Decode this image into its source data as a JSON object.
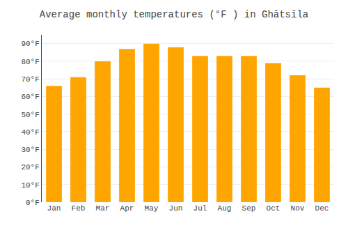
{
  "chart_data": {
    "type": "bar",
    "title": "Average monthly temperatures (°F ) in Ghātsīla",
    "categories": [
      "Jan",
      "Feb",
      "Mar",
      "Apr",
      "May",
      "Jun",
      "Jul",
      "Aug",
      "Sep",
      "Oct",
      "Nov",
      "Dec"
    ],
    "values": [
      66,
      71,
      80,
      87,
      90,
      88,
      83,
      83,
      83,
      79,
      72,
      65
    ],
    "color": "#FFA500",
    "ylim": [
      0,
      95
    ],
    "yticks": [
      {
        "value": 0,
        "label": "0°F"
      },
      {
        "value": 10,
        "label": "10°F"
      },
      {
        "value": 20,
        "label": "20°F"
      },
      {
        "value": 30,
        "label": "30°F"
      },
      {
        "value": 40,
        "label": "40°F"
      },
      {
        "value": 50,
        "label": "50°F"
      },
      {
        "value": 60,
        "label": "60°F"
      },
      {
        "value": 70,
        "label": "70°F"
      },
      {
        "value": 80,
        "label": "80°F"
      },
      {
        "value": 90,
        "label": "90°F"
      }
    ],
    "grid": true
  }
}
